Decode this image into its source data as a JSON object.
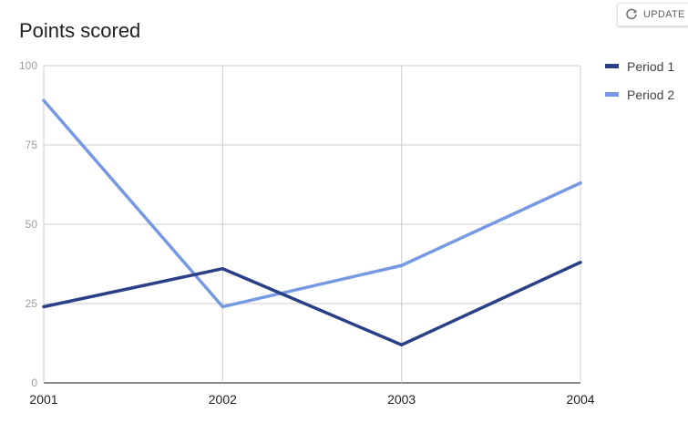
{
  "header": {
    "update_label": "UPDATE",
    "refresh_icon": "refresh-icon"
  },
  "chart_data": {
    "type": "line",
    "title": "Points scored",
    "xlabel": "",
    "ylabel": "",
    "x": [
      "2001",
      "2002",
      "2003",
      "2004"
    ],
    "ylim": [
      0,
      100
    ],
    "yticks": [
      "0",
      "25",
      "50",
      "75",
      "100"
    ],
    "grid": true,
    "legend_position": "right",
    "series": [
      {
        "name": "Period 1",
        "values": [
          24,
          36,
          12,
          38
        ],
        "color": "#2b3f86"
      },
      {
        "name": "Period 2",
        "values": [
          89,
          24,
          37,
          63
        ],
        "color": "#7799e4"
      }
    ]
  }
}
